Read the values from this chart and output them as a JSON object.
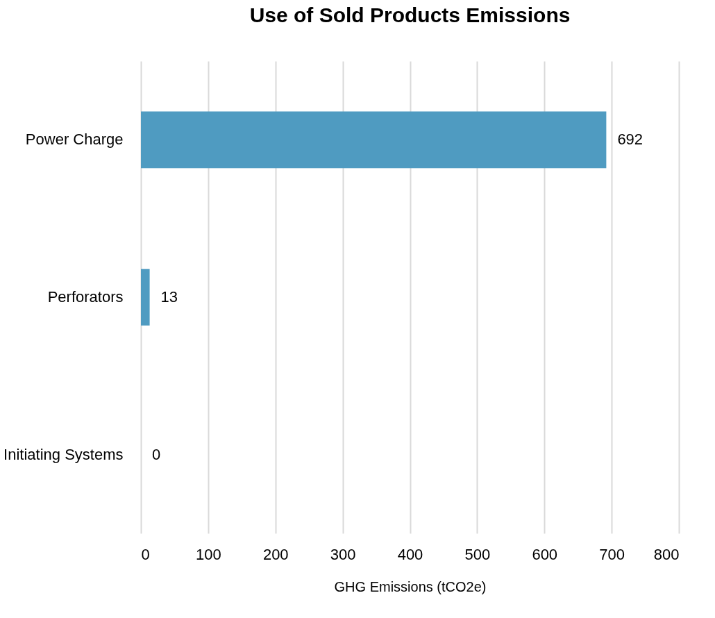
{
  "chart_data": {
    "type": "bar",
    "orientation": "horizontal",
    "title": "Use of Sold Products Emissions",
    "xlabel": "GHG Emissions (tCO2e)",
    "categories": [
      "Power Charge",
      "Perforators",
      "Initiating Systems"
    ],
    "values": [
      692,
      13,
      0
    ],
    "color": "#4f9bc1",
    "data_labels": true,
    "xlim": [
      0,
      800
    ],
    "xticks": [
      0,
      100,
      200,
      300,
      400,
      500,
      600,
      700,
      800
    ],
    "grid": "x"
  }
}
